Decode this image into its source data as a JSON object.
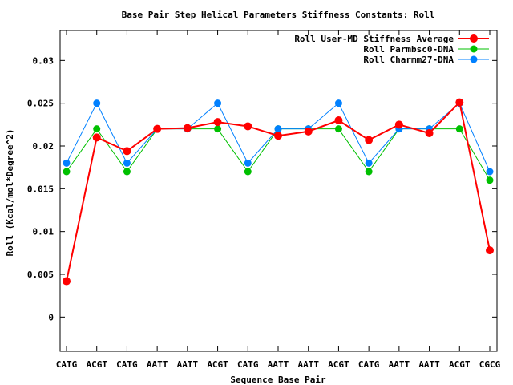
{
  "chart_data": {
    "type": "line",
    "title": "Base Pair Step Helical Parameters Stiffness Constants: Roll",
    "xlabel": "Sequence Base Pair",
    "ylabel": "Roll (Kcal/mol*Degree^2)",
    "categories": [
      "CATG",
      "ACGT",
      "CATG",
      "AATT",
      "AATT",
      "ACGT",
      "CATG",
      "AATT",
      "AATT",
      "ACGT",
      "CATG",
      "AATT",
      "AATT",
      "ACGT",
      "CGCG"
    ],
    "ylim": [
      -0.004,
      0.0335
    ],
    "yticks": [
      0,
      0.005,
      0.01,
      0.015,
      0.02,
      0.025,
      0.03
    ],
    "ytick_labels": [
      "0",
      "0.005",
      "0.01",
      "0.015",
      "0.02",
      "0.025",
      "0.03"
    ],
    "grid": false,
    "legend_position": "top-right",
    "series": [
      {
        "name": "Roll User-MD Stiffness Average",
        "color": "#ff0000",
        "values": [
          0.0042,
          0.021,
          0.0194,
          0.022,
          0.0221,
          0.0228,
          0.0223,
          0.0212,
          0.0217,
          0.023,
          0.0207,
          0.0225,
          0.0215,
          0.0251,
          0.0078
        ]
      },
      {
        "name": "Roll Parmbsc0-DNA",
        "color": "#00c000",
        "values": [
          0.017,
          0.022,
          0.017,
          0.022,
          0.022,
          0.022,
          0.017,
          0.022,
          0.022,
          0.022,
          0.017,
          0.022,
          0.022,
          0.022,
          0.016
        ]
      },
      {
        "name": "Roll Charmm27-DNA",
        "color": "#0080ff",
        "values": [
          0.018,
          0.025,
          0.018,
          0.022,
          0.022,
          0.025,
          0.018,
          0.022,
          0.022,
          0.025,
          0.018,
          0.022,
          0.022,
          0.025,
          0.017
        ]
      }
    ]
  }
}
